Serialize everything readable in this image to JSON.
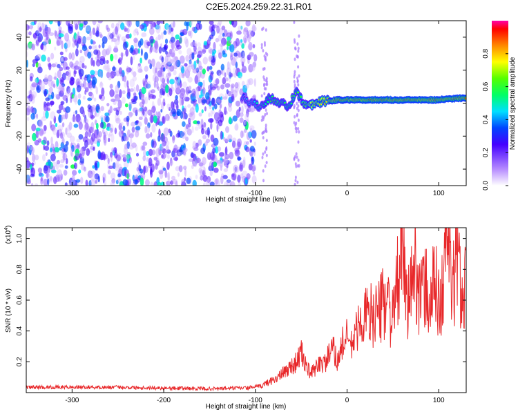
{
  "figure": {
    "title": "C2E5.2024.259.22.31.R01"
  },
  "chart_data": [
    {
      "type": "heatmap",
      "name": "spectrogram",
      "xlabel": "Height of straight line (km)",
      "ylabel": "Frequency (Hz)",
      "xlim": [
        -350,
        130
      ],
      "ylim": [
        -50,
        50
      ],
      "x_ticks": [
        -300,
        -200,
        -100,
        0,
        100
      ],
      "y_ticks": [
        -40,
        -20,
        0,
        20,
        40
      ],
      "noise_region": {
        "x_from": -350,
        "x_to": -100,
        "freq_from": -50,
        "freq_to": 50,
        "amplitude": 0.3
      },
      "signal_track": {
        "x": [
          -115,
          -105,
          -95,
          -85,
          -75,
          -65,
          -55,
          -45,
          -35,
          -25,
          -10,
          0,
          20,
          40,
          60,
          80,
          100,
          120,
          130
        ],
        "freq": [
          4,
          0,
          -2,
          3,
          1,
          -2,
          6,
          -2,
          0,
          1,
          2,
          2,
          2,
          2,
          2,
          2,
          2,
          3,
          3
        ],
        "amplitude": [
          0.4,
          0.5,
          0.55,
          0.6,
          0.65,
          0.6,
          0.65,
          0.7,
          0.8,
          0.85,
          0.9,
          0.92,
          0.95,
          0.95,
          0.95,
          0.95,
          0.95,
          0.95,
          0.95
        ]
      },
      "colorbar": {
        "label": "Normalized spectral amplitude",
        "range": [
          0,
          1
        ],
        "ticks": [
          0.0,
          0.2,
          0.4,
          0.6,
          0.8
        ]
      }
    },
    {
      "type": "line",
      "name": "snr",
      "xlabel": "Height of straight line (km)",
      "ylabel": "SNR (10 * v/v)",
      "y_scale_label": "(x10",
      "y_scale_exponent": "4",
      "y_scale_close": ")",
      "xlim": [
        -350,
        130
      ],
      "ylim": [
        0,
        1.07
      ],
      "x_ticks": [
        -300,
        -200,
        -100,
        0,
        100
      ],
      "y_ticks": [
        0.2,
        0.4,
        0.6,
        0.8,
        1.0
      ],
      "series": [
        {
          "color": "#e8282a",
          "x": [
            -350,
            -250,
            -150,
            -110,
            -95,
            -85,
            -75,
            -65,
            -55,
            -50,
            -45,
            -40,
            -35,
            -30,
            -25,
            -20,
            -15,
            -10,
            -5,
            0,
            5,
            10,
            15,
            20,
            25,
            30,
            35,
            40,
            45,
            50,
            55,
            60,
            65,
            70,
            75,
            80,
            85,
            90,
            95,
            100,
            105,
            108,
            112,
            115,
            120,
            125,
            130
          ],
          "y": [
            0.035,
            0.035,
            0.025,
            0.03,
            0.04,
            0.07,
            0.1,
            0.15,
            0.2,
            0.26,
            0.18,
            0.12,
            0.15,
            0.2,
            0.18,
            0.24,
            0.28,
            0.2,
            0.32,
            0.36,
            0.3,
            0.4,
            0.45,
            0.5,
            0.48,
            0.55,
            0.5,
            0.62,
            0.6,
            0.45,
            0.7,
            0.99,
            0.55,
            0.7,
            0.85,
            0.6,
            0.7,
            0.55,
            0.72,
            0.6,
            0.65,
            1.07,
            0.9,
            0.6,
            0.95,
            0.6,
            0.78
          ]
        }
      ]
    }
  ]
}
